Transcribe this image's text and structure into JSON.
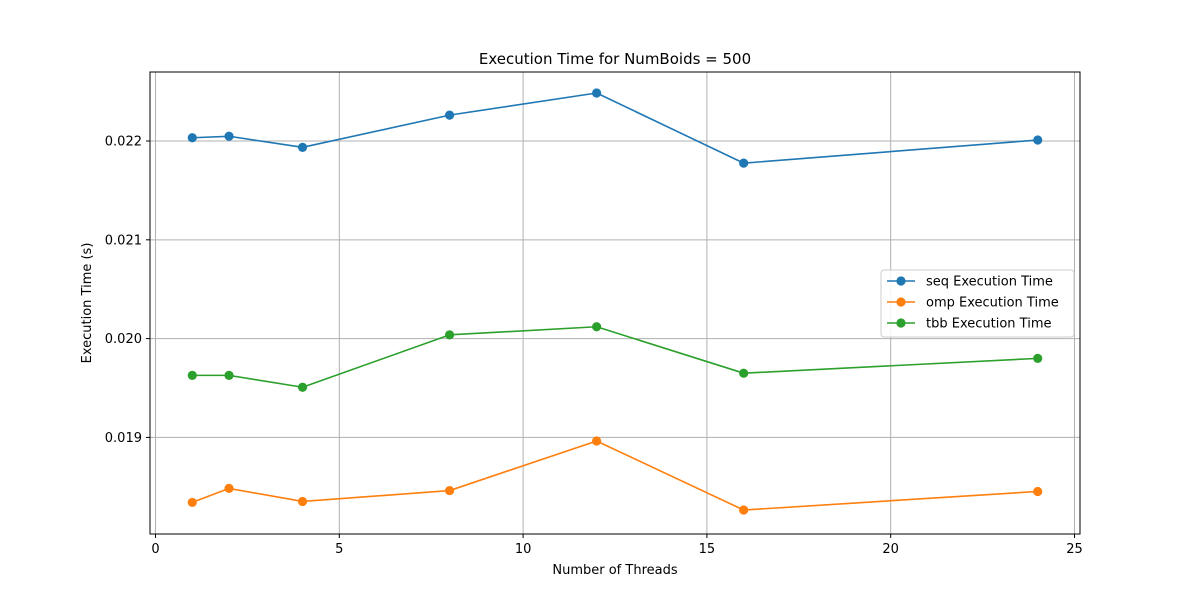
{
  "chart_data": {
    "type": "line",
    "title": "Execution Time for NumBoids = 500",
    "xlabel": "Number of Threads",
    "ylabel": "Execution Time (s)",
    "x": [
      1,
      2,
      4,
      8,
      12,
      16,
      24
    ],
    "xlim": [
      -0.15,
      25.15
    ],
    "ylim": [
      0.018235,
      0.022486
    ],
    "xticks": [
      0,
      5,
      10,
      15,
      20,
      25
    ],
    "xtick_labels": [
      "0",
      "5",
      "10",
      "15",
      "20",
      "25"
    ],
    "yticks": [
      0.019,
      0.02,
      0.021,
      0.022
    ],
    "ytick_labels": [
      "0.019",
      "0.020",
      "0.021",
      "0.022"
    ],
    "grid": true,
    "legend_position": "center-right",
    "series": [
      {
        "name": "seq Execution Time",
        "color": "#1f77b4",
        "values": [
          0.022033,
          0.022048,
          0.021936,
          0.022262,
          0.022486,
          0.021776,
          0.02201
        ]
      },
      {
        "name": "omp Execution Time",
        "color": "#ff7f0e",
        "values": [
          0.018342,
          0.018484,
          0.018352,
          0.018462,
          0.018964,
          0.018265,
          0.018453
        ]
      },
      {
        "name": "tbb Execution Time",
        "color": "#2ca02c",
        "values": [
          0.019628,
          0.019628,
          0.019508,
          0.020038,
          0.02012,
          0.01965,
          0.0198
        ]
      }
    ]
  }
}
